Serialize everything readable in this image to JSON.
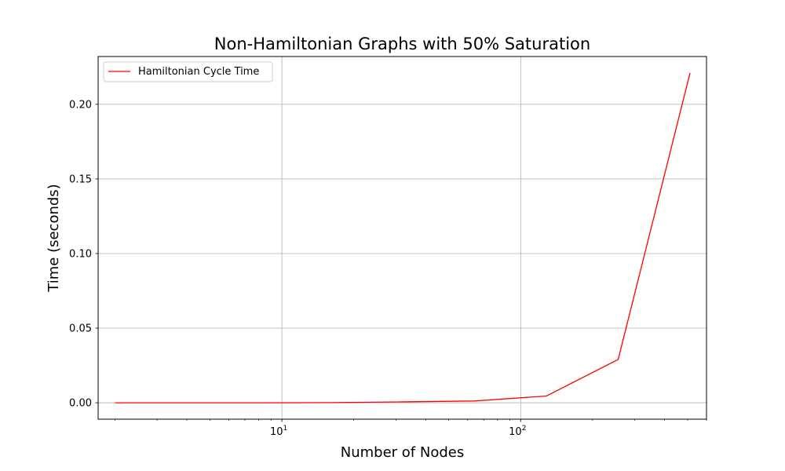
{
  "chart_data": {
    "type": "line",
    "title": "Non-Hamiltonian Graphs with 50% Saturation",
    "xlabel": "Number of Nodes",
    "ylabel": "Time (seconds)",
    "xscale": "log",
    "xlim": [
      1.7,
      600
    ],
    "ylim": [
      -0.011,
      0.232
    ],
    "grid": true,
    "legend_position": "top-left",
    "xticks": [
      {
        "value": 10,
        "base": "10",
        "exp": "1"
      },
      {
        "value": 100,
        "base": "10",
        "exp": "2"
      }
    ],
    "yticks": [
      0.0,
      0.05,
      0.1,
      0.15,
      0.2
    ],
    "ytick_labels": [
      "0.00",
      "0.05",
      "0.10",
      "0.15",
      "0.20"
    ],
    "series": [
      {
        "name": "Hamiltonian Cycle Time",
        "color": "#ff0000",
        "x": [
          2,
          4,
          8,
          16,
          32,
          64,
          128,
          256,
          512
        ],
        "y": [
          0.0,
          0.0,
          0.0,
          0.0001,
          0.0006,
          0.0012,
          0.0045,
          0.029,
          0.221
        ]
      }
    ]
  }
}
